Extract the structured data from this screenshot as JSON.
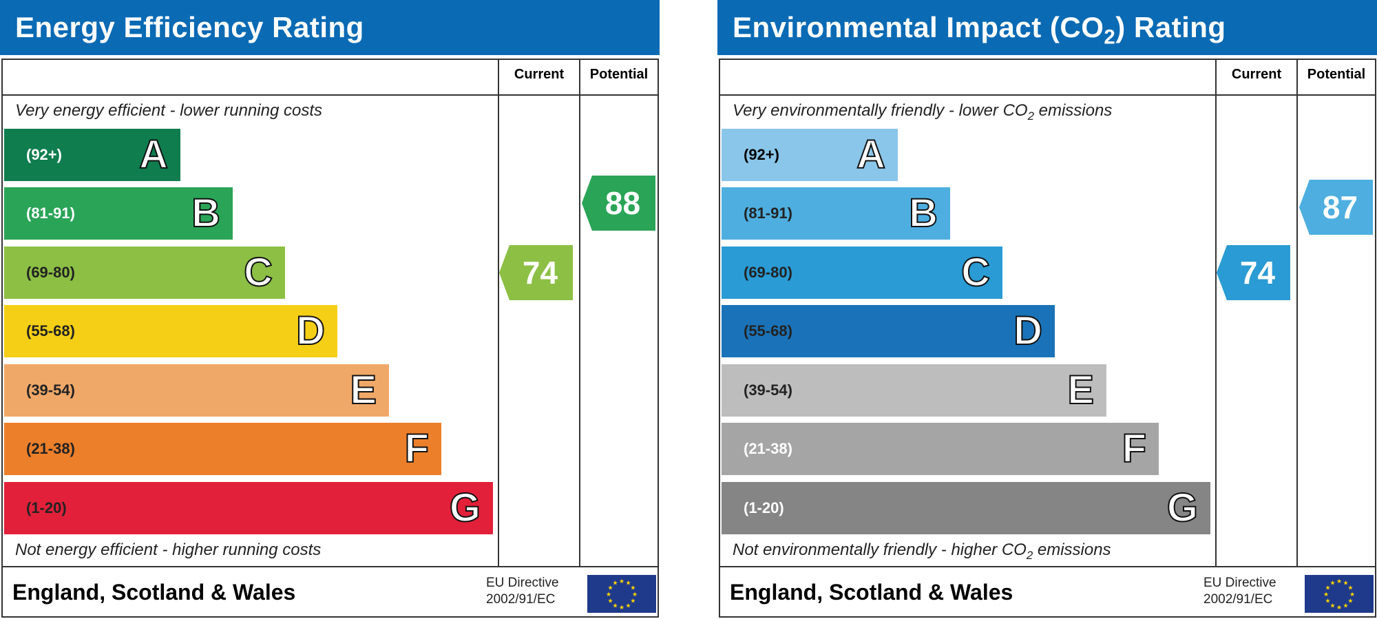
{
  "chart_data": [
    {
      "type": "bar",
      "title": "Energy Efficiency Rating",
      "columns": [
        "Current",
        "Potential"
      ],
      "top_note": "Very energy efficient - lower running costs",
      "bottom_note": "Not energy efficient - higher running costs",
      "bands": [
        {
          "letter": "A",
          "range": "(92+)",
          "color": "#0f7d4e",
          "range_color": "#fff"
        },
        {
          "letter": "B",
          "range": "(81-91)",
          "color": "#2aa457",
          "range_color": "#fff"
        },
        {
          "letter": "C",
          "range": "(69-80)",
          "color": "#8cbf44",
          "range_color": "#222"
        },
        {
          "letter": "D",
          "range": "(55-68)",
          "color": "#f5cf16",
          "range_color": "#222"
        },
        {
          "letter": "E",
          "range": "(39-54)",
          "color": "#f0a868",
          "range_color": "#222"
        },
        {
          "letter": "F",
          "range": "(21-38)",
          "color": "#ec7f2a",
          "range_color": "#222"
        },
        {
          "letter": "G",
          "range": "(1-20)",
          "color": "#e2203a",
          "range_color": "#222"
        }
      ],
      "current": {
        "value": 74,
        "band": "C",
        "color": "#8cbf44"
      },
      "potential": {
        "value": 88,
        "band": "B",
        "color": "#2aa457"
      },
      "region": "England, Scotland & Wales",
      "directive_line1": "EU Directive",
      "directive_line2": "2002/91/EC"
    },
    {
      "type": "bar",
      "title": "Environmental Impact (CO2) Rating",
      "columns": [
        "Current",
        "Potential"
      ],
      "top_note": "Very environmentally friendly - lower CO2 emissions",
      "bottom_note": "Not environmentally friendly - higher CO2 emissions",
      "bands": [
        {
          "letter": "A",
          "range": "(92+)",
          "color": "#8ac6ea",
          "range_color": "#000"
        },
        {
          "letter": "B",
          "range": "(81-91)",
          "color": "#4eaee0",
          "range_color": "#222"
        },
        {
          "letter": "C",
          "range": "(69-80)",
          "color": "#2a9bd4",
          "range_color": "#222"
        },
        {
          "letter": "D",
          "range": "(55-68)",
          "color": "#1a73b8",
          "range_color": "#222"
        },
        {
          "letter": "E",
          "range": "(39-54)",
          "color": "#bdbdbd",
          "range_color": "#222"
        },
        {
          "letter": "F",
          "range": "(21-38)",
          "color": "#a5a5a5",
          "range_color": "#fff"
        },
        {
          "letter": "G",
          "range": "(1-20)",
          "color": "#858585",
          "range_color": "#fff"
        }
      ],
      "current": {
        "value": 74,
        "band": "C",
        "color": "#2a9bd4"
      },
      "potential": {
        "value": 87,
        "band": "B",
        "color": "#4eaee0"
      },
      "region": "England, Scotland & Wales",
      "directive_line1": "EU Directive",
      "directive_line2": "2002/91/EC"
    }
  ],
  "header_color": "#0a6ab4"
}
